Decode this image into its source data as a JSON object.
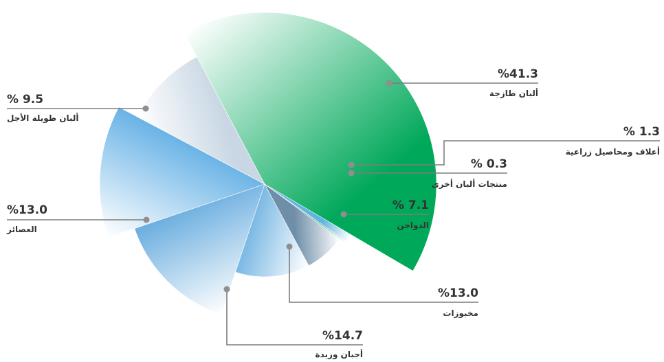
{
  "chart_data": {
    "type": "pie",
    "variant": "exploded radial pie with variable radii",
    "slices": [
      {
        "label": "ألبان طازجة",
        "value": 41.3,
        "display": "%41.3",
        "color": "#00a85a"
      },
      {
        "label": "أعلاف ومحاصيل زراعية",
        "value": 1.3,
        "display": "% 1.3",
        "color": "#5fb4e4"
      },
      {
        "label": "منتجات ألبان أخرى",
        "value": 0.3,
        "display": "% 0.3",
        "color": "#5ec08a"
      },
      {
        "label": "الدواجن",
        "value": 7.1,
        "display": "% 7.1",
        "color": "#6f8ea8"
      },
      {
        "label": "مخبوزات",
        "value": 13.0,
        "display": "%13.0",
        "color": "#7ab8e4"
      },
      {
        "label": "أجبان وزبدة",
        "value": 14.7,
        "display": "%14.7",
        "color": "#6fb0e0"
      },
      {
        "label": "العصائر",
        "value": 13.0,
        "display": "%13.0",
        "color": "#6ab3e6"
      },
      {
        "label": "ألبان طويلة الأجل",
        "value": 9.5,
        "display": "% 9.5",
        "color": "#c9d7e4"
      }
    ],
    "legend": "none (callout labels)"
  }
}
